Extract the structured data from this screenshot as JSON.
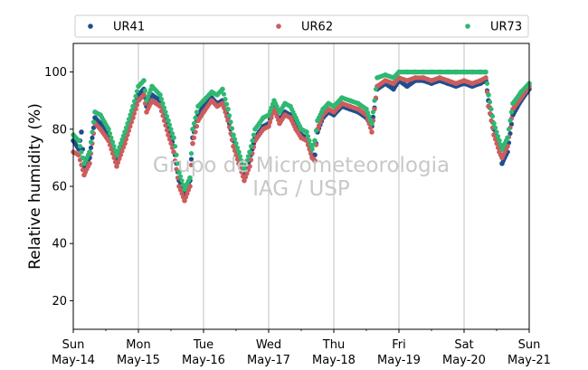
{
  "chart_data": {
    "type": "scatter",
    "ylabel": "Relative humidity (%)",
    "xlabel": "",
    "ylim": [
      10,
      110
    ],
    "xlim": [
      "2018-05-14",
      "2018-05-21"
    ],
    "yticks": [
      20,
      40,
      60,
      80,
      100
    ],
    "xticks": [
      {
        "x": "2018-05-14",
        "weekday": "Sun",
        "date": "May-14"
      },
      {
        "x": "2018-05-15",
        "weekday": "Mon",
        "date": "May-15"
      },
      {
        "x": "2018-05-16",
        "weekday": "Tue",
        "date": "May-16"
      },
      {
        "x": "2018-05-17",
        "weekday": "Wed",
        "date": "May-17"
      },
      {
        "x": "2018-05-18",
        "weekday": "Thu",
        "date": "May-18"
      },
      {
        "x": "2018-05-19",
        "weekday": "Fri",
        "date": "May-19"
      },
      {
        "x": "2018-05-20",
        "weekday": "Sat",
        "date": "May-20"
      },
      {
        "x": "2018-05-21",
        "weekday": "Sun",
        "date": "May-21"
      }
    ],
    "grid": "vertical",
    "legend_position": "top",
    "watermark": [
      "Grupo de Micrometeorologia",
      "IAG / USP"
    ],
    "series": [
      {
        "name": "UR41",
        "color": "#1f4e8c",
        "points": [
          [
            "2018-05-14 00:00",
            76
          ],
          [
            "2018-05-14 02:00",
            73
          ],
          [
            "2018-05-14 03:00",
            79
          ],
          [
            "2018-05-14 04:00",
            67
          ],
          [
            "2018-05-14 06:00",
            70
          ],
          [
            "2018-05-14 08:00",
            84
          ],
          [
            "2018-05-14 10:00",
            82
          ],
          [
            "2018-05-14 13:00",
            78
          ],
          [
            "2018-05-14 16:00",
            69
          ],
          [
            "2018-05-14 19:00",
            77
          ],
          [
            "2018-05-14 22:00",
            86
          ],
          [
            "2018-05-15 00:00",
            92
          ],
          [
            "2018-05-15 02:00",
            94
          ],
          [
            "2018-05-15 03:00",
            88
          ],
          [
            "2018-05-15 05:00",
            92
          ],
          [
            "2018-05-15 08:00",
            90
          ],
          [
            "2018-05-15 11:00",
            80
          ],
          [
            "2018-05-15 13:00",
            74
          ],
          [
            "2018-05-15 15:00",
            62
          ],
          [
            "2018-05-15 17:00",
            57
          ],
          [
            "2018-05-15 19:00",
            62
          ],
          [
            "2018-05-15 20:00",
            77
          ],
          [
            "2018-05-15 22:00",
            85
          ],
          [
            "2018-05-16 00:00",
            88
          ],
          [
            "2018-05-16 03:00",
            91
          ],
          [
            "2018-05-16 05:00",
            89
          ],
          [
            "2018-05-16 07:00",
            90
          ],
          [
            "2018-05-16 09:00",
            84
          ],
          [
            "2018-05-16 11:00",
            76
          ],
          [
            "2018-05-16 13:00",
            70
          ],
          [
            "2018-05-16 15:00",
            64
          ],
          [
            "2018-05-16 17:00",
            69
          ],
          [
            "2018-05-16 19:00",
            77
          ],
          [
            "2018-05-16 22:00",
            81
          ],
          [
            "2018-05-17 00:00",
            82
          ],
          [
            "2018-05-17 02:00",
            88
          ],
          [
            "2018-05-17 04:00",
            83
          ],
          [
            "2018-05-17 06:00",
            86
          ],
          [
            "2018-05-17 08:00",
            85
          ],
          [
            "2018-05-17 10:00",
            81
          ],
          [
            "2018-05-17 12:00",
            78
          ],
          [
            "2018-05-17 14:00",
            77
          ],
          [
            "2018-05-17 16:00",
            71
          ],
          [
            "2018-05-17 17:00",
            71
          ],
          [
            "2018-05-17 18:00",
            79
          ],
          [
            "2018-05-17 20:00",
            84
          ],
          [
            "2018-05-17 22:00",
            86
          ],
          [
            "2018-05-18 00:00",
            85
          ],
          [
            "2018-05-18 03:00",
            88
          ],
          [
            "2018-05-18 06:00",
            87
          ],
          [
            "2018-05-18 09:00",
            86
          ],
          [
            "2018-05-18 12:00",
            84
          ],
          [
            "2018-05-18 14:00",
            81
          ],
          [
            "2018-05-18 16:00",
            94
          ],
          [
            "2018-05-18 19:00",
            96
          ],
          [
            "2018-05-18 22:00",
            94
          ],
          [
            "2018-05-19 00:00",
            97
          ],
          [
            "2018-05-19 03:00",
            95
          ],
          [
            "2018-05-19 06:00",
            97
          ],
          [
            "2018-05-19 09:00",
            97
          ],
          [
            "2018-05-19 12:00",
            96
          ],
          [
            "2018-05-19 15:00",
            97
          ],
          [
            "2018-05-19 18:00",
            96
          ],
          [
            "2018-05-19 21:00",
            95
          ],
          [
            "2018-05-20 00:00",
            96
          ],
          [
            "2018-05-20 03:00",
            95
          ],
          [
            "2018-05-20 06:00",
            96
          ],
          [
            "2018-05-20 08:00",
            97
          ],
          [
            "2018-05-20 09:00",
            90
          ],
          [
            "2018-05-20 11:00",
            80
          ],
          [
            "2018-05-20 13:00",
            74
          ],
          [
            "2018-05-20 14:00",
            68
          ],
          [
            "2018-05-20 16:00",
            72
          ],
          [
            "2018-05-20 18:00",
            85
          ],
          [
            "2018-05-20 21:00",
            90
          ],
          [
            "2018-05-21 00:00",
            94
          ]
        ]
      },
      {
        "name": "UR62",
        "color": "#cd5c5c",
        "points": [
          [
            "2018-05-14 00:00",
            72
          ],
          [
            "2018-05-14 02:00",
            71
          ],
          [
            "2018-05-14 04:00",
            64
          ],
          [
            "2018-05-14 06:00",
            68
          ],
          [
            "2018-05-14 08:00",
            82
          ],
          [
            "2018-05-14 10:00",
            80
          ],
          [
            "2018-05-14 13:00",
            76
          ],
          [
            "2018-05-14 16:00",
            67
          ],
          [
            "2018-05-14 19:00",
            75
          ],
          [
            "2018-05-14 22:00",
            84
          ],
          [
            "2018-05-15 00:00",
            90
          ],
          [
            "2018-05-15 02:00",
            92
          ],
          [
            "2018-05-15 03:00",
            86
          ],
          [
            "2018-05-15 05:00",
            90
          ],
          [
            "2018-05-15 08:00",
            88
          ],
          [
            "2018-05-15 11:00",
            78
          ],
          [
            "2018-05-15 13:00",
            72
          ],
          [
            "2018-05-15 15:00",
            60
          ],
          [
            "2018-05-15 17:00",
            55
          ],
          [
            "2018-05-15 19:00",
            60
          ],
          [
            "2018-05-15 20:00",
            75
          ],
          [
            "2018-05-15 22:00",
            83
          ],
          [
            "2018-05-16 00:00",
            86
          ],
          [
            "2018-05-16 03:00",
            90
          ],
          [
            "2018-05-16 05:00",
            88
          ],
          [
            "2018-05-16 07:00",
            89
          ],
          [
            "2018-05-16 09:00",
            83
          ],
          [
            "2018-05-16 11:00",
            74
          ],
          [
            "2018-05-16 13:00",
            68
          ],
          [
            "2018-05-16 15:00",
            62
          ],
          [
            "2018-05-16 17:00",
            67
          ],
          [
            "2018-05-16 19:00",
            76
          ],
          [
            "2018-05-16 22:00",
            80
          ],
          [
            "2018-05-17 00:00",
            81
          ],
          [
            "2018-05-17 02:00",
            87
          ],
          [
            "2018-05-17 04:00",
            82
          ],
          [
            "2018-05-17 06:00",
            85
          ],
          [
            "2018-05-17 08:00",
            84
          ],
          [
            "2018-05-17 10:00",
            80
          ],
          [
            "2018-05-17 12:00",
            77
          ],
          [
            "2018-05-17 14:00",
            76
          ],
          [
            "2018-05-17 16:00",
            70
          ],
          [
            "2018-05-17 17:00",
            69
          ],
          [
            "2018-05-17 18:00",
            80
          ],
          [
            "2018-05-17 20:00",
            85
          ],
          [
            "2018-05-17 22:00",
            87
          ],
          [
            "2018-05-18 00:00",
            86
          ],
          [
            "2018-05-18 03:00",
            89
          ],
          [
            "2018-05-18 06:00",
            88
          ],
          [
            "2018-05-18 09:00",
            87
          ],
          [
            "2018-05-18 12:00",
            85
          ],
          [
            "2018-05-18 14:00",
            79
          ],
          [
            "2018-05-18 16:00",
            95
          ],
          [
            "2018-05-18 19:00",
            97
          ],
          [
            "2018-05-18 22:00",
            96
          ],
          [
            "2018-05-19 00:00",
            98
          ],
          [
            "2018-05-19 03:00",
            97
          ],
          [
            "2018-05-19 06:00",
            98
          ],
          [
            "2018-05-19 09:00",
            98
          ],
          [
            "2018-05-19 12:00",
            97
          ],
          [
            "2018-05-19 15:00",
            98
          ],
          [
            "2018-05-19 18:00",
            97
          ],
          [
            "2018-05-19 21:00",
            96
          ],
          [
            "2018-05-20 00:00",
            97
          ],
          [
            "2018-05-20 03:00",
            96
          ],
          [
            "2018-05-20 06:00",
            97
          ],
          [
            "2018-05-20 08:00",
            98
          ],
          [
            "2018-05-20 09:00",
            88
          ],
          [
            "2018-05-20 11:00",
            78
          ],
          [
            "2018-05-20 13:00",
            72
          ],
          [
            "2018-05-20 14:00",
            70
          ],
          [
            "2018-05-20 16:00",
            74
          ],
          [
            "2018-05-20 18:00",
            87
          ],
          [
            "2018-05-20 21:00",
            91
          ],
          [
            "2018-05-21 00:00",
            95
          ]
        ]
      },
      {
        "name": "UR73",
        "color": "#2eb872",
        "points": [
          [
            "2018-05-14 00:00",
            78
          ],
          [
            "2018-05-14 02:00",
            76
          ],
          [
            "2018-05-14 04:00",
            68
          ],
          [
            "2018-05-14 06:00",
            72
          ],
          [
            "2018-05-14 08:00",
            86
          ],
          [
            "2018-05-14 10:00",
            85
          ],
          [
            "2018-05-14 13:00",
            80
          ],
          [
            "2018-05-14 16:00",
            71
          ],
          [
            "2018-05-14 19:00",
            79
          ],
          [
            "2018-05-14 22:00",
            88
          ],
          [
            "2018-05-15 00:00",
            95
          ],
          [
            "2018-05-15 02:00",
            97
          ],
          [
            "2018-05-15 03:00",
            90
          ],
          [
            "2018-05-15 05:00",
            95
          ],
          [
            "2018-05-15 08:00",
            92
          ],
          [
            "2018-05-15 11:00",
            83
          ],
          [
            "2018-05-15 13:00",
            77
          ],
          [
            "2018-05-15 15:00",
            65
          ],
          [
            "2018-05-15 17:00",
            59
          ],
          [
            "2018-05-15 19:00",
            63
          ],
          [
            "2018-05-15 20:00",
            80
          ],
          [
            "2018-05-15 22:00",
            88
          ],
          [
            "2018-05-16 00:00",
            90
          ],
          [
            "2018-05-16 03:00",
            93
          ],
          [
            "2018-05-16 05:00",
            92
          ],
          [
            "2018-05-16 07:00",
            94
          ],
          [
            "2018-05-16 09:00",
            87
          ],
          [
            "2018-05-16 11:00",
            78
          ],
          [
            "2018-05-16 13:00",
            72
          ],
          [
            "2018-05-16 15:00",
            66
          ],
          [
            "2018-05-16 17:00",
            72
          ],
          [
            "2018-05-16 19:00",
            80
          ],
          [
            "2018-05-16 22:00",
            84
          ],
          [
            "2018-05-17 00:00",
            85
          ],
          [
            "2018-05-17 02:00",
            90
          ],
          [
            "2018-05-17 04:00",
            86
          ],
          [
            "2018-05-17 06:00",
            89
          ],
          [
            "2018-05-17 08:00",
            88
          ],
          [
            "2018-05-17 10:00",
            84
          ],
          [
            "2018-05-17 12:00",
            80
          ],
          [
            "2018-05-17 14:00",
            79
          ],
          [
            "2018-05-17 16:00",
            73
          ],
          [
            "2018-05-17 17:00",
            76
          ],
          [
            "2018-05-17 18:00",
            83
          ],
          [
            "2018-05-17 20:00",
            87
          ],
          [
            "2018-05-17 22:00",
            89
          ],
          [
            "2018-05-18 00:00",
            88
          ],
          [
            "2018-05-18 03:00",
            91
          ],
          [
            "2018-05-18 06:00",
            90
          ],
          [
            "2018-05-18 09:00",
            89
          ],
          [
            "2018-05-18 12:00",
            87
          ],
          [
            "2018-05-18 14:00",
            82
          ],
          [
            "2018-05-18 16:00",
            98
          ],
          [
            "2018-05-18 19:00",
            99
          ],
          [
            "2018-05-18 22:00",
            98
          ],
          [
            "2018-05-19 00:00",
            100
          ],
          [
            "2018-05-19 03:00",
            100
          ],
          [
            "2018-05-19 06:00",
            100
          ],
          [
            "2018-05-19 09:00",
            100
          ],
          [
            "2018-05-19 12:00",
            100
          ],
          [
            "2018-05-19 15:00",
            100
          ],
          [
            "2018-05-19 18:00",
            100
          ],
          [
            "2018-05-19 21:00",
            100
          ],
          [
            "2018-05-20 00:00",
            100
          ],
          [
            "2018-05-20 03:00",
            100
          ],
          [
            "2018-05-20 06:00",
            100
          ],
          [
            "2018-05-20 08:00",
            100
          ],
          [
            "2018-05-20 09:00",
            92
          ],
          [
            "2018-05-20 11:00",
            82
          ],
          [
            "2018-05-20 13:00",
            76
          ],
          [
            "2018-05-20 14:00",
            73
          ],
          [
            "2018-05-20 16:00",
            77
          ],
          [
            "2018-05-20 18:00",
            89
          ],
          [
            "2018-05-20 21:00",
            93
          ],
          [
            "2018-05-21 00:00",
            96
          ]
        ]
      }
    ]
  }
}
